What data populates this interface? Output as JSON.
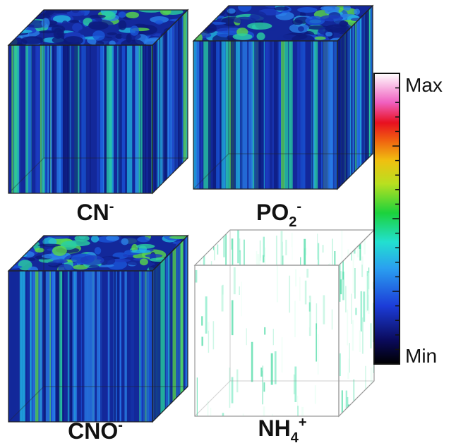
{
  "panels": [
    {
      "label": {
        "base": "CN",
        "sup": "-"
      }
    },
    {
      "label": {
        "base": "PO",
        "sub": "2",
        "sup": "-"
      }
    },
    {
      "label": {
        "base": "CNO",
        "sup": "-"
      }
    },
    {
      "label": {
        "base": "NH",
        "sub": "4",
        "sup": "+"
      }
    }
  ],
  "colorbar": {
    "max_label": "Max",
    "min_label": "Min"
  }
}
